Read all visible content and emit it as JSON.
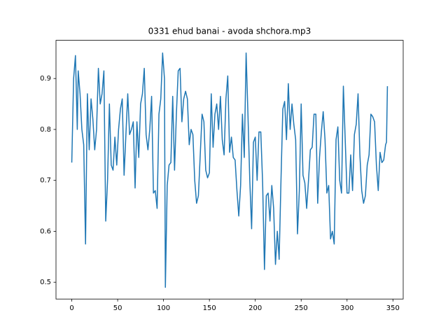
{
  "chart_data": {
    "type": "line",
    "title": "0331 ehud banai - avoda shchora.mp3",
    "x": [
      0,
      2,
      4,
      6,
      7,
      9,
      11,
      13,
      15,
      17,
      19,
      21,
      23,
      25,
      27,
      29,
      31,
      33,
      35,
      37,
      39,
      41,
      43,
      45,
      47,
      49,
      51,
      53,
      55,
      57,
      59,
      61,
      63,
      65,
      67,
      69,
      71,
      73,
      75,
      77,
      79,
      81,
      83,
      85,
      87,
      89,
      91,
      93,
      95,
      97,
      99,
      101,
      102,
      104,
      106,
      108,
      110,
      112,
      114,
      116,
      118,
      120,
      122,
      124,
      126,
      128,
      130,
      132,
      134,
      136,
      138,
      140,
      142,
      144,
      146,
      148,
      150,
      152,
      154,
      156,
      158,
      160,
      162,
      164,
      166,
      168,
      170,
      172,
      174,
      176,
      178,
      180,
      182,
      184,
      186,
      188,
      190,
      192,
      194,
      196,
      198,
      200,
      202,
      204,
      206,
      208,
      210,
      212,
      214,
      216,
      218,
      220,
      222,
      224,
      226,
      228,
      230,
      232,
      234,
      236,
      238,
      240,
      242,
      244,
      246,
      248,
      250,
      252,
      254,
      256,
      258,
      260,
      262,
      264,
      266,
      268,
      270,
      272,
      274,
      276,
      278,
      280,
      282,
      284,
      286,
      288,
      290,
      292,
      294,
      296,
      298,
      300,
      302,
      304,
      306,
      308,
      310,
      312,
      314,
      316,
      318,
      320,
      322,
      324,
      326,
      328,
      330,
      332,
      334,
      336,
      338,
      340,
      342,
      343,
      344
    ],
    "series": [
      {
        "color": "#1f77b4",
        "values": [
          0.735,
          0.9,
          0.945,
          0.8,
          0.915,
          0.87,
          0.8,
          0.77,
          0.575,
          0.87,
          0.76,
          0.86,
          0.82,
          0.76,
          0.8,
          0.92,
          0.85,
          0.87,
          0.915,
          0.62,
          0.7,
          0.85,
          0.73,
          0.72,
          0.785,
          0.73,
          0.8,
          0.84,
          0.86,
          0.71,
          0.79,
          0.87,
          0.79,
          0.8,
          0.815,
          0.685,
          0.815,
          0.745,
          0.85,
          0.87,
          0.92,
          0.79,
          0.76,
          0.8,
          0.865,
          0.675,
          0.68,
          0.645,
          0.83,
          0.86,
          0.95,
          0.9,
          0.49,
          0.69,
          0.73,
          0.735,
          0.865,
          0.72,
          0.83,
          0.915,
          0.92,
          0.815,
          0.86,
          0.875,
          0.86,
          0.77,
          0.8,
          0.79,
          0.7,
          0.655,
          0.67,
          0.75,
          0.83,
          0.815,
          0.72,
          0.705,
          0.715,
          0.87,
          0.765,
          0.83,
          0.85,
          0.8,
          0.865,
          0.78,
          0.75,
          0.86,
          0.905,
          0.755,
          0.785,
          0.745,
          0.74,
          0.68,
          0.63,
          0.69,
          0.83,
          0.745,
          0.95,
          0.83,
          0.7,
          0.605,
          0.775,
          0.785,
          0.7,
          0.795,
          0.795,
          0.695,
          0.525,
          0.67,
          0.675,
          0.62,
          0.69,
          0.645,
          0.535,
          0.6,
          0.545,
          0.7,
          0.84,
          0.855,
          0.78,
          0.89,
          0.8,
          0.85,
          0.81,
          0.78,
          0.595,
          0.68,
          0.85,
          0.71,
          0.695,
          0.645,
          0.7,
          0.76,
          0.765,
          0.83,
          0.83,
          0.655,
          0.745,
          0.795,
          0.835,
          0.78,
          0.675,
          0.69,
          0.585,
          0.6,
          0.575,
          0.78,
          0.805,
          0.7,
          0.675,
          0.885,
          0.78,
          0.675,
          0.675,
          0.75,
          0.68,
          0.79,
          0.81,
          0.87,
          0.75,
          0.68,
          0.655,
          0.67,
          0.73,
          0.75,
          0.83,
          0.825,
          0.815,
          0.73,
          0.68,
          0.755,
          0.735,
          0.74,
          0.77,
          0.775,
          0.885
        ]
      }
    ],
    "xlim": [
      -17.2,
      361.2
    ],
    "ylim": [
      0.467,
      0.975
    ],
    "xticks": [
      0,
      50,
      100,
      150,
      200,
      250,
      300,
      350
    ],
    "yticks": [
      0.5,
      0.6,
      0.7,
      0.8,
      0.9
    ]
  }
}
